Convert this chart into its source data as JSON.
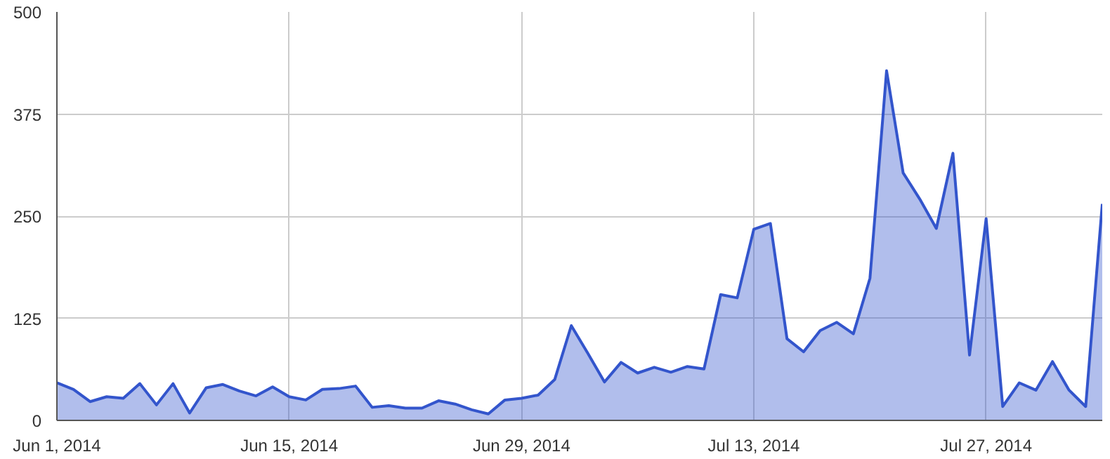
{
  "chart_data": {
    "type": "area",
    "x": [
      "2014-06-01",
      "2014-06-02",
      "2014-06-03",
      "2014-06-04",
      "2014-06-05",
      "2014-06-06",
      "2014-06-07",
      "2014-06-08",
      "2014-06-09",
      "2014-06-10",
      "2014-06-11",
      "2014-06-12",
      "2014-06-13",
      "2014-06-14",
      "2014-06-15",
      "2014-06-16",
      "2014-06-17",
      "2014-06-18",
      "2014-06-19",
      "2014-06-20",
      "2014-06-21",
      "2014-06-22",
      "2014-06-23",
      "2014-06-24",
      "2014-06-25",
      "2014-06-26",
      "2014-06-27",
      "2014-06-28",
      "2014-06-29",
      "2014-06-30",
      "2014-07-01",
      "2014-07-02",
      "2014-07-03",
      "2014-07-04",
      "2014-07-05",
      "2014-07-06",
      "2014-07-07",
      "2014-07-08",
      "2014-07-09",
      "2014-07-10",
      "2014-07-11",
      "2014-07-12",
      "2014-07-13",
      "2014-07-14",
      "2014-07-15",
      "2014-07-16",
      "2014-07-17",
      "2014-07-18",
      "2014-07-19",
      "2014-07-20",
      "2014-07-21",
      "2014-07-22",
      "2014-07-23",
      "2014-07-24",
      "2014-07-25",
      "2014-07-26",
      "2014-07-27",
      "2014-07-28",
      "2014-07-29",
      "2014-07-30",
      "2014-07-31",
      "2014-08-01",
      "2014-08-02",
      "2014-08-03"
    ],
    "series": [
      {
        "color": "#3355cc",
        "values": [
          46,
          38,
          23,
          29,
          27,
          45,
          19,
          45,
          9,
          40,
          44,
          36,
          30,
          41,
          29,
          25,
          38,
          39,
          42,
          16,
          18,
          15,
          15,
          24,
          20,
          13,
          8,
          25,
          27,
          31,
          50,
          116,
          82,
          47,
          71,
          58,
          65,
          59,
          66,
          63,
          154,
          150,
          234,
          241,
          100,
          84,
          110,
          120,
          106,
          174,
          428,
          303,
          271,
          235,
          327,
          80,
          247,
          17,
          46,
          37,
          72,
          37,
          17,
          265
        ]
      }
    ],
    "xlim": [
      "2014-06-01",
      "2014-08-03"
    ],
    "xticks": [
      {
        "value": "2014-06-01",
        "label": "Jun 1, 2014"
      },
      {
        "value": "2014-06-15",
        "label": "Jun 15, 2014"
      },
      {
        "value": "2014-06-29",
        "label": "Jun 29, 2014"
      },
      {
        "value": "2014-07-13",
        "label": "Jul 13, 2014"
      },
      {
        "value": "2014-07-27",
        "label": "Jul 27, 2014"
      }
    ],
    "ylim": [
      0,
      500
    ],
    "yticks": [
      0,
      125,
      250,
      375,
      500
    ],
    "grid": true
  }
}
